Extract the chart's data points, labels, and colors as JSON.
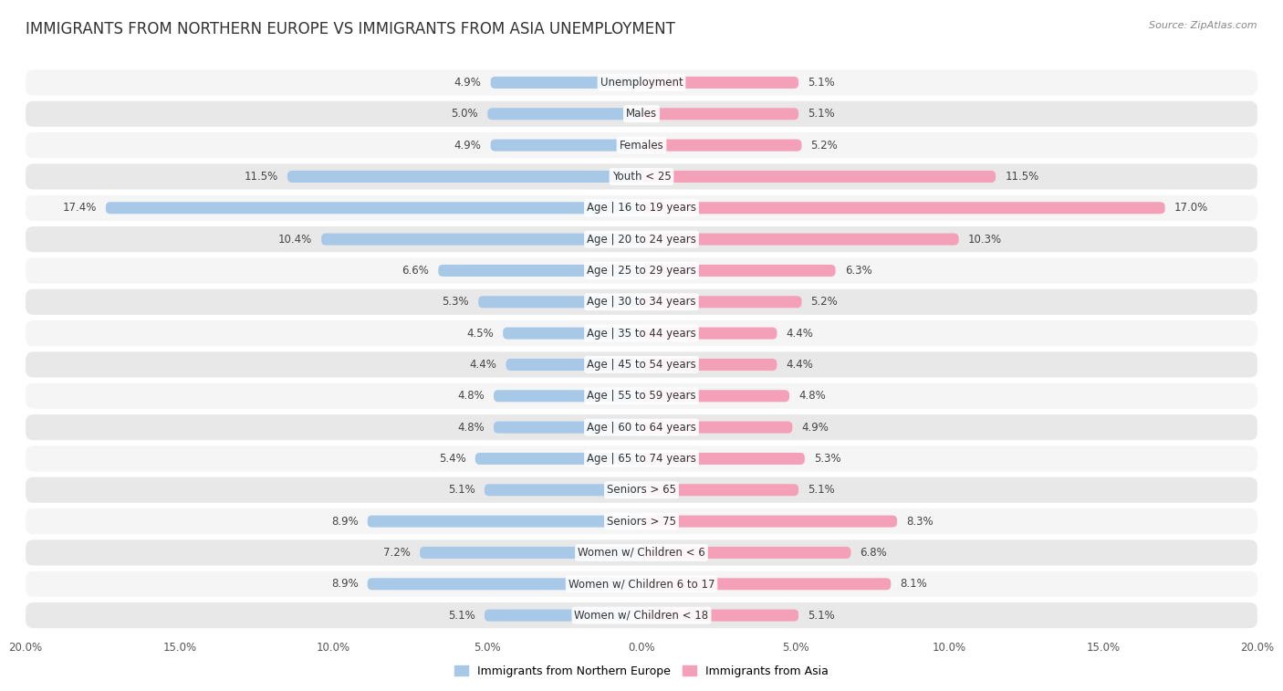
{
  "title": "IMMIGRANTS FROM NORTHERN EUROPE VS IMMIGRANTS FROM ASIA UNEMPLOYMENT",
  "source": "Source: ZipAtlas.com",
  "categories": [
    "Unemployment",
    "Males",
    "Females",
    "Youth < 25",
    "Age | 16 to 19 years",
    "Age | 20 to 24 years",
    "Age | 25 to 29 years",
    "Age | 30 to 34 years",
    "Age | 35 to 44 years",
    "Age | 45 to 54 years",
    "Age | 55 to 59 years",
    "Age | 60 to 64 years",
    "Age | 65 to 74 years",
    "Seniors > 65",
    "Seniors > 75",
    "Women w/ Children < 6",
    "Women w/ Children 6 to 17",
    "Women w/ Children < 18"
  ],
  "left_values": [
    4.9,
    5.0,
    4.9,
    11.5,
    17.4,
    10.4,
    6.6,
    5.3,
    4.5,
    4.4,
    4.8,
    4.8,
    5.4,
    5.1,
    8.9,
    7.2,
    8.9,
    5.1
  ],
  "right_values": [
    5.1,
    5.1,
    5.2,
    11.5,
    17.0,
    10.3,
    6.3,
    5.2,
    4.4,
    4.4,
    4.8,
    4.9,
    5.3,
    5.1,
    8.3,
    6.8,
    8.1,
    5.1
  ],
  "left_color": "#a8c8e8",
  "right_color": "#f4a0b8",
  "left_label": "Immigrants from Northern Europe",
  "right_label": "Immigrants from Asia",
  "axis_max": 20.0,
  "fig_bg": "#ffffff",
  "row_bg_odd": "#f5f5f5",
  "row_bg_even": "#e8e8e8",
  "title_fontsize": 12,
  "label_fontsize": 8.5,
  "value_fontsize": 8.5,
  "tick_fontsize": 8.5
}
